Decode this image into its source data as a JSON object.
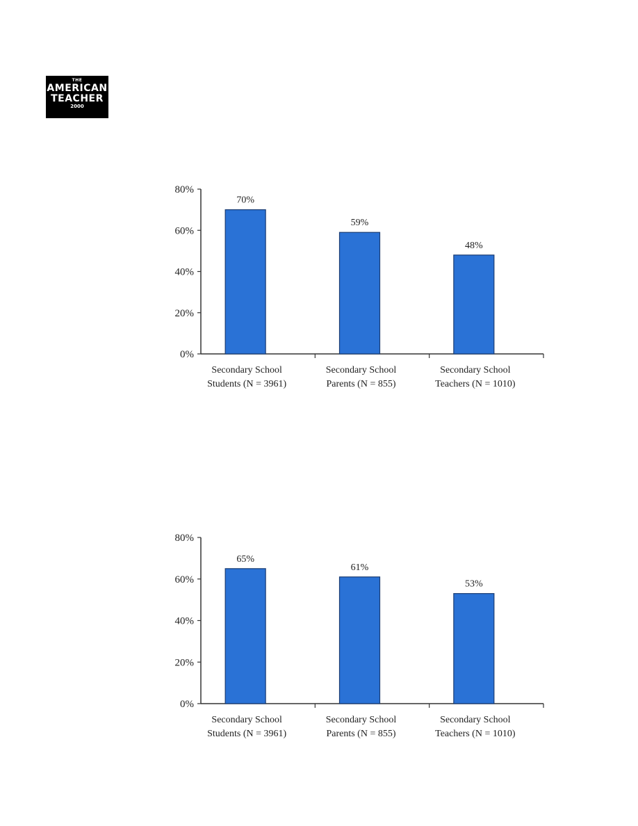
{
  "logo": {
    "line1": "THE",
    "line2": "AMERICAN",
    "line3": "TEACHER",
    "line4": "2000"
  },
  "colors": {
    "bar": "#2a72d6",
    "bar_stroke": "#1b3d73",
    "axis": "#333333"
  },
  "chart_data": [
    {
      "type": "bar",
      "title": "",
      "xlabel": "",
      "ylabel": "",
      "ylim": [
        0,
        80
      ],
      "yticks": [
        "0%",
        "20%",
        "40%",
        "60%",
        "80%"
      ],
      "categories": [
        [
          "Secondary School",
          "Students (N = 3961)"
        ],
        [
          "Secondary School",
          "Parents (N = 855)"
        ],
        [
          "Secondary School",
          "Teachers (N = 1010)"
        ]
      ],
      "values": [
        70,
        59,
        48
      ],
      "value_labels": [
        "70%",
        "59%",
        "48%"
      ],
      "grid": false
    },
    {
      "type": "bar",
      "title": "",
      "xlabel": "",
      "ylabel": "",
      "ylim": [
        0,
        80
      ],
      "yticks": [
        "0%",
        "20%",
        "40%",
        "60%",
        "80%"
      ],
      "categories": [
        [
          "Secondary School",
          "Students (N = 3961)"
        ],
        [
          "Secondary School",
          "Parents (N = 855)"
        ],
        [
          "Secondary School",
          "Teachers (N = 1010)"
        ]
      ],
      "values": [
        65,
        61,
        53
      ],
      "value_labels": [
        "65%",
        "61%",
        "53%"
      ],
      "grid": false
    }
  ]
}
